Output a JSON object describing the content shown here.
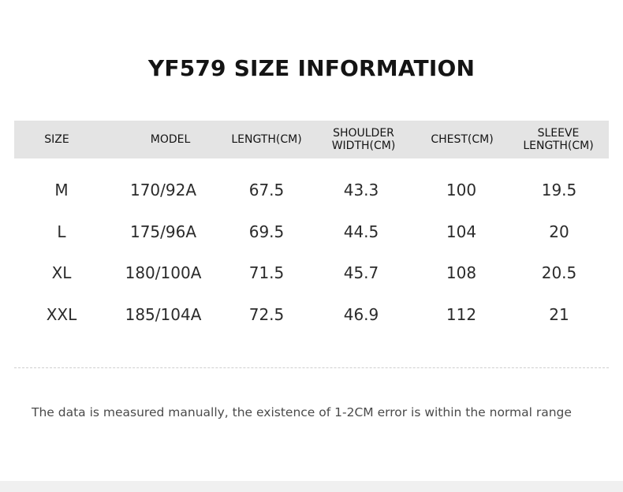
{
  "title": "YF579 SIZE INFORMATION",
  "table": {
    "headers": [
      "SIZE",
      "MODEL",
      "LENGTH(CM)",
      "SHOULDER\nWIDTH(CM)",
      "CHEST(CM)",
      "SLEEVE\nLENGTH(CM)"
    ],
    "rows": [
      [
        "M",
        "170/92A",
        "67.5",
        "43.3",
        "100",
        "19.5"
      ],
      [
        "L",
        "175/96A",
        "69.5",
        "44.5",
        "104",
        "20"
      ],
      [
        "XL",
        "180/100A",
        "71.5",
        "45.7",
        "108",
        "20.5"
      ],
      [
        "XXL",
        "185/104A",
        "72.5",
        "46.9",
        "112",
        "21"
      ]
    ]
  },
  "note": "The data is measured manually, the existence of 1-2CM error is within the normal range",
  "colors": {
    "header_band": "#e4e4e4",
    "title_text": "#141414",
    "cell_text": "#2b2b2b",
    "note_text": "#4a4a4a"
  }
}
